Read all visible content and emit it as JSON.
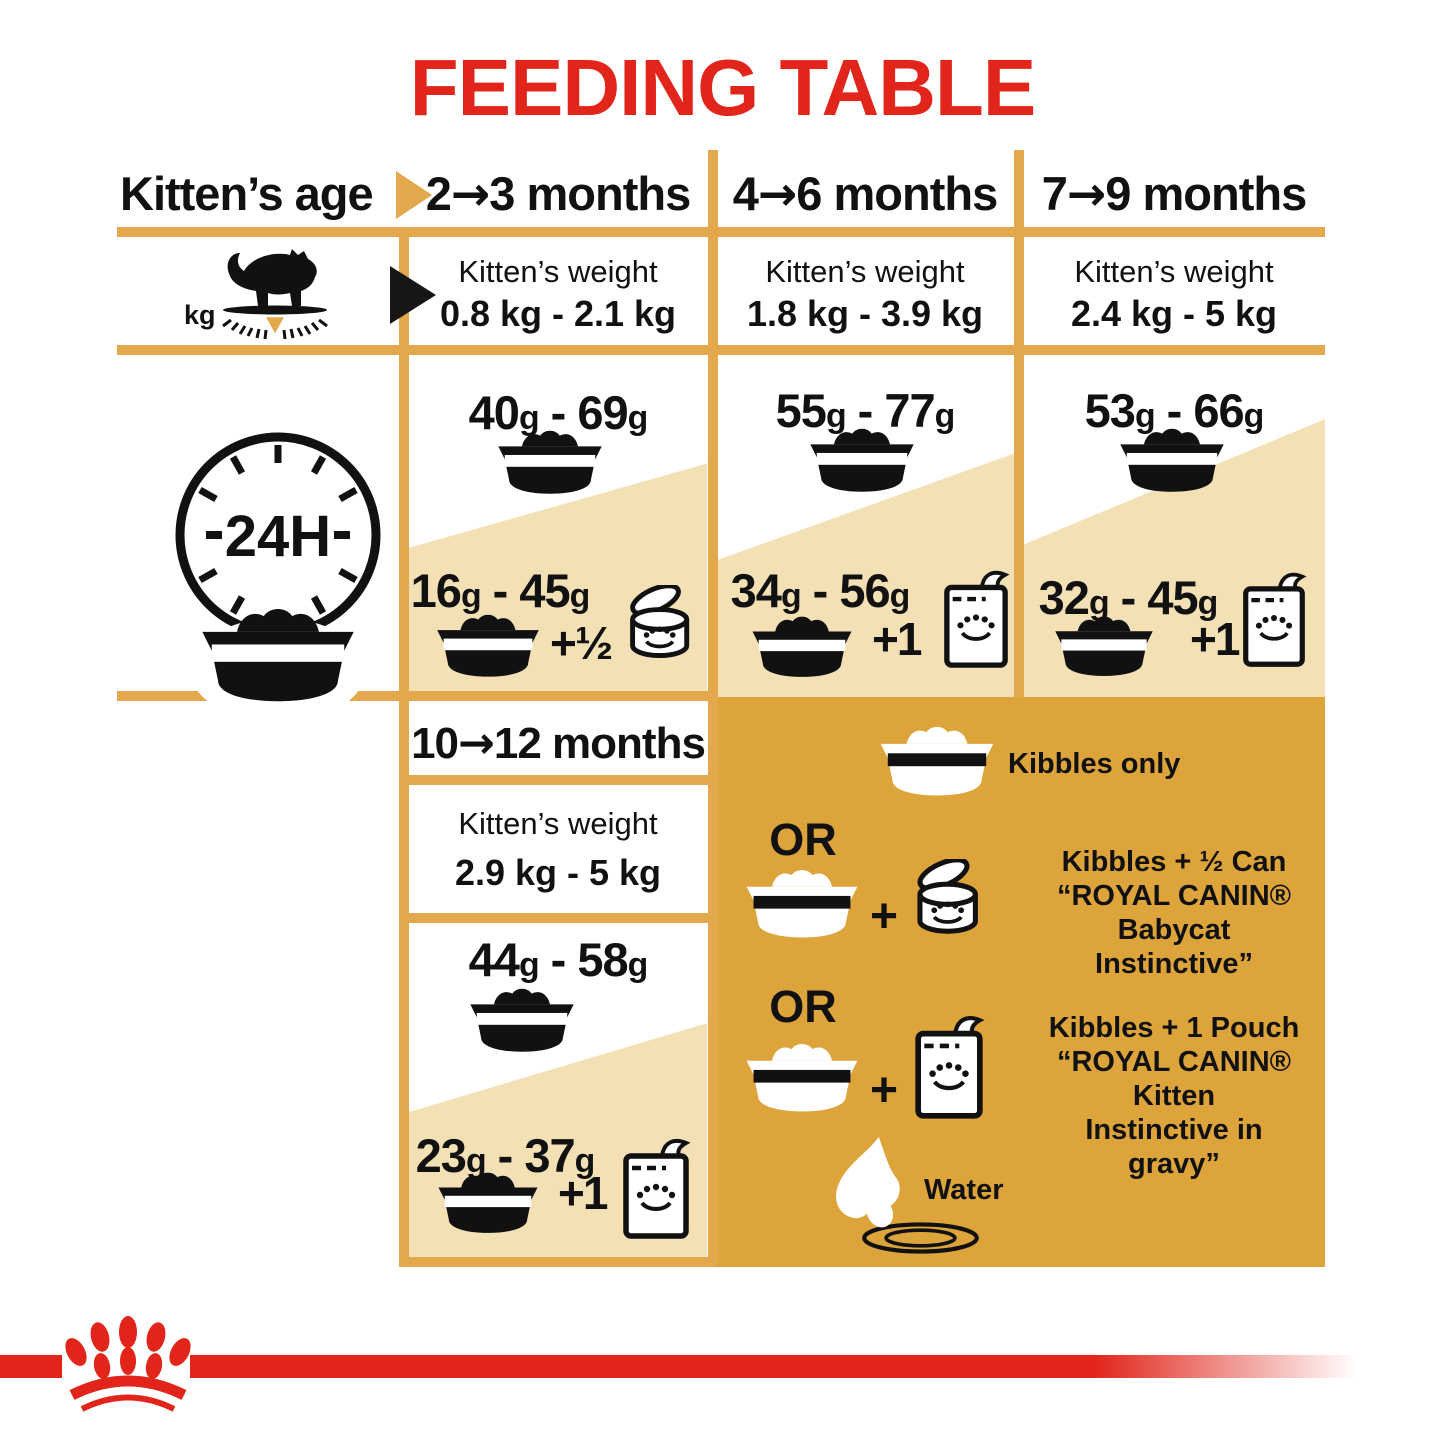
{
  "title": "FEEDING TABLE",
  "header": {
    "row_label": "Kitten’s age",
    "columns": [
      "2→3 months",
      "4→6 months",
      "7→9 months"
    ]
  },
  "weight_row": {
    "kg_label": "kg",
    "cells": [
      {
        "label": "Kitten’s weight",
        "value": "0.8 kg - 2.1 kg"
      },
      {
        "label": "Kitten’s weight",
        "value": "1.8 kg - 3.9 kg"
      },
      {
        "label": "Kitten’s weight",
        "value": "2.4 kg - 5 kg"
      }
    ]
  },
  "daily_row": {
    "clock_label": "24H",
    "cells": [
      {
        "kibbles": "40g - 69g",
        "mix": "16g - 45g",
        "mix_add": "+½"
      },
      {
        "kibbles": "55g - 77g",
        "mix": "34g - 56g",
        "mix_add": "+1"
      },
      {
        "kibbles": "53g - 66g",
        "mix": "32g - 45g",
        "mix_add": "+1"
      }
    ]
  },
  "late_column": {
    "header": "10→12 months",
    "weight_label": "Kitten’s weight",
    "weight_value": "2.9 kg - 5 kg",
    "kibbles": "44g - 58g",
    "mix": "23g - 37g",
    "mix_add": "+1"
  },
  "legend": {
    "kibbles_only": "Kibbles only",
    "or_first": "OR",
    "or_second": "OR",
    "plus_sign": "+",
    "can_text": [
      "Kibbles + ½ Can",
      "“ROYAL CANIN®",
      "Babycat Instinctive”"
    ],
    "pouch_text": [
      "Kibbles + 1 Pouch",
      "“ROYAL CANIN® Kitten",
      "Instinctive in gravy”"
    ],
    "water_label": "Water"
  },
  "colors": {
    "red": "#E1251B",
    "gold": "#E3A84B",
    "gold_dark": "#DDA43C",
    "tan": "#F3E0B5",
    "black": "#111111"
  }
}
